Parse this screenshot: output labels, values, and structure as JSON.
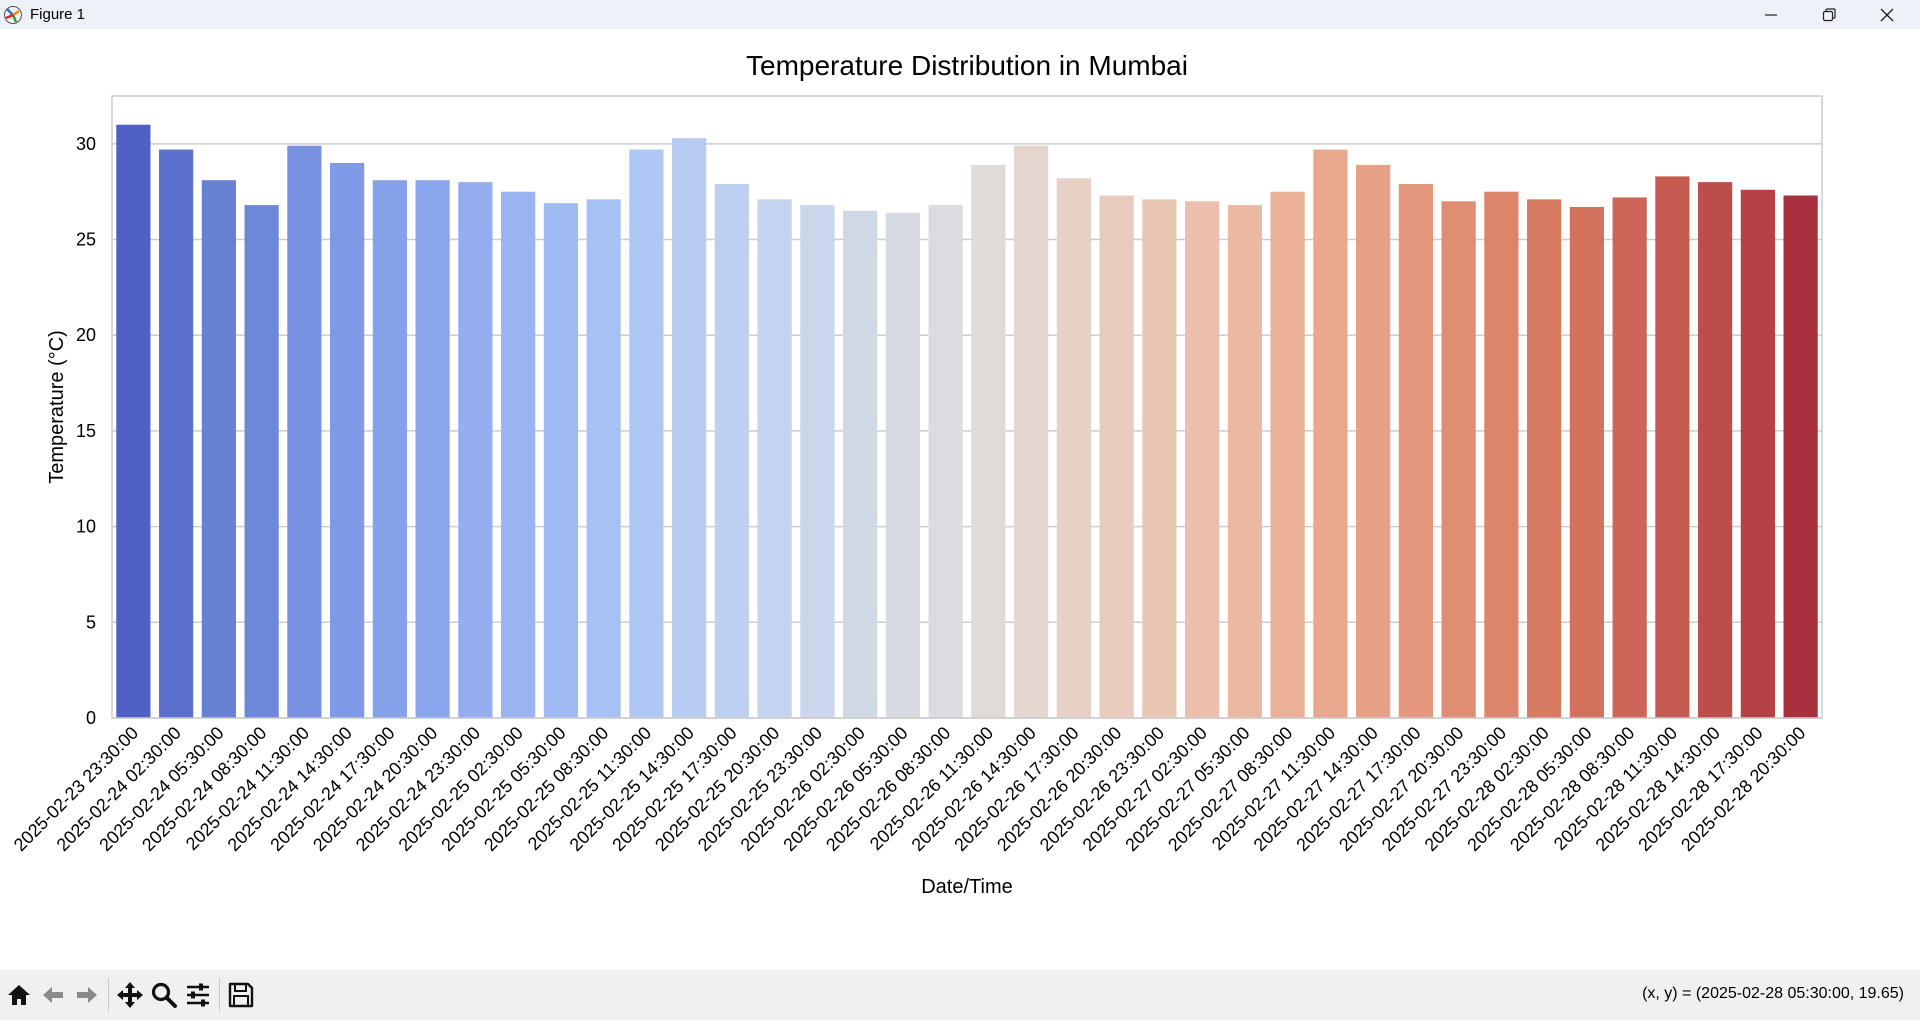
{
  "window": {
    "title": "Figure 1",
    "controls": {
      "minimize_icon": "minimize-icon",
      "restore_icon": "restore-icon",
      "close_icon": "close-icon"
    }
  },
  "toolbar": {
    "buttons": [
      "home-icon",
      "back-arrow-icon",
      "forward-arrow-icon",
      "pan-icon",
      "zoom-icon",
      "configure-subplots-icon",
      "save-icon"
    ],
    "coordinates": "(x, y) = (2025-02-28 05:30:00, 19.65)"
  },
  "chart_data": {
    "type": "bar",
    "title": "Temperature Distribution in Mumbai",
    "xlabel": "Date/Time",
    "ylabel": "Temperature (°C)",
    "ylim": [
      0,
      32.5
    ],
    "yticks": [
      0,
      5,
      10,
      15,
      20,
      25,
      30
    ],
    "grid": "horizontal",
    "palette": "coolwarm",
    "categories": [
      "2025-02-23 23:30:00",
      "2025-02-24 02:30:00",
      "2025-02-24 05:30:00",
      "2025-02-24 08:30:00",
      "2025-02-24 11:30:00",
      "2025-02-24 14:30:00",
      "2025-02-24 17:30:00",
      "2025-02-24 20:30:00",
      "2025-02-24 23:30:00",
      "2025-02-25 02:30:00",
      "2025-02-25 05:30:00",
      "2025-02-25 08:30:00",
      "2025-02-25 11:30:00",
      "2025-02-25 14:30:00",
      "2025-02-25 17:30:00",
      "2025-02-25 20:30:00",
      "2025-02-25 23:30:00",
      "2025-02-26 02:30:00",
      "2025-02-26 05:30:00",
      "2025-02-26 08:30:00",
      "2025-02-26 11:30:00",
      "2025-02-26 14:30:00",
      "2025-02-26 17:30:00",
      "2025-02-26 20:30:00",
      "2025-02-26 23:30:00",
      "2025-02-27 02:30:00",
      "2025-02-27 05:30:00",
      "2025-02-27 08:30:00",
      "2025-02-27 11:30:00",
      "2025-02-27 14:30:00",
      "2025-02-27 17:30:00",
      "2025-02-27 20:30:00",
      "2025-02-27 23:30:00",
      "2025-02-28 02:30:00",
      "2025-02-28 05:30:00",
      "2025-02-28 08:30:00",
      "2025-02-28 11:30:00",
      "2025-02-28 14:30:00",
      "2025-02-28 17:30:00",
      "2025-02-28 20:30:00"
    ],
    "values": [
      31.0,
      29.7,
      28.1,
      26.8,
      29.9,
      29.0,
      28.1,
      28.1,
      28.0,
      27.5,
      26.9,
      27.1,
      29.7,
      30.3,
      27.9,
      27.1,
      26.8,
      26.5,
      26.4,
      26.8,
      28.9,
      29.9,
      28.2,
      27.3,
      27.1,
      27.0,
      26.8,
      27.5,
      29.7,
      28.9,
      27.9,
      27.0,
      27.5,
      27.1,
      26.7,
      27.2,
      28.3,
      28.0,
      27.6,
      27.3
    ],
    "colors": [
      "#4f62c4",
      "#5b70ca",
      "#6781d3",
      "#6e88d9",
      "#7892e1",
      "#7e99e5",
      "#85a1e9",
      "#8aa6ec",
      "#93adef",
      "#9ab3f1",
      "#a0baf3",
      "#a8c1f5",
      "#afc7f4",
      "#b6ccf3",
      "#bdd0f1",
      "#c4d3ef",
      "#cad6ec",
      "#d0d8e6",
      "#d5dae2",
      "#dbdcdf",
      "#e0dad8",
      "#e4d6cf",
      "#e7d0c6",
      "#e9cbbd",
      "#eac6b5",
      "#ebbfab",
      "#ebb8a1",
      "#eab098",
      "#e9a88e",
      "#e6a086",
      "#e3977c",
      "#e08e73",
      "#dc856b",
      "#d77b63",
      "#d2725c",
      "#cc6656",
      "#c55b50",
      "#bc4e4a",
      "#b44145",
      "#a9303d"
    ]
  }
}
